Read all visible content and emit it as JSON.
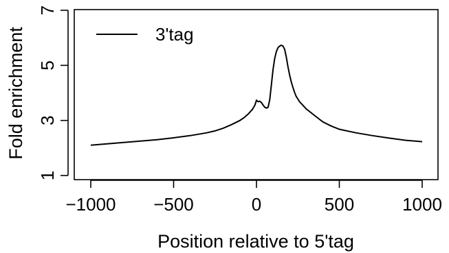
{
  "chart_data": {
    "type": "line",
    "title": "",
    "xlabel": "Position relative to 5'tag",
    "ylabel": "Fold enrichment",
    "xlim": [
      -1000,
      1000
    ],
    "ylim": [
      1,
      7
    ],
    "x_ticks": [
      -1000,
      -500,
      0,
      500,
      1000
    ],
    "x_tick_labels": [
      "−1000",
      "−500",
      "0",
      "500",
      "1000"
    ],
    "y_ticks": [
      1,
      3,
      5,
      7
    ],
    "y_tick_labels": [
      "1",
      "3",
      "5",
      "7"
    ],
    "grid": false,
    "legend": {
      "position": "top-left"
    },
    "series": [
      {
        "name": "3'tag",
        "color": "#000000",
        "x": [
          -1000,
          -900,
          -800,
          -700,
          -600,
          -500,
          -400,
          -300,
          -250,
          -200,
          -150,
          -100,
          -75,
          -50,
          -25,
          -10,
          0,
          10,
          20,
          30,
          40,
          50,
          60,
          70,
          80,
          90,
          100,
          110,
          120,
          130,
          140,
          150,
          160,
          170,
          180,
          190,
          200,
          210,
          220,
          230,
          240,
          260,
          280,
          300,
          350,
          400,
          450,
          500,
          600,
          700,
          800,
          900,
          1000
        ],
        "y": [
          2.1,
          2.15,
          2.2,
          2.25,
          2.3,
          2.37,
          2.45,
          2.55,
          2.62,
          2.72,
          2.85,
          3.0,
          3.1,
          3.23,
          3.4,
          3.55,
          3.73,
          3.68,
          3.7,
          3.65,
          3.56,
          3.48,
          3.45,
          3.48,
          3.75,
          4.3,
          4.85,
          5.25,
          5.5,
          5.64,
          5.7,
          5.73,
          5.7,
          5.58,
          5.3,
          4.95,
          4.65,
          4.4,
          4.2,
          4.02,
          3.87,
          3.68,
          3.55,
          3.42,
          3.18,
          2.95,
          2.8,
          2.68,
          2.55,
          2.45,
          2.36,
          2.28,
          2.23
        ]
      }
    ]
  }
}
